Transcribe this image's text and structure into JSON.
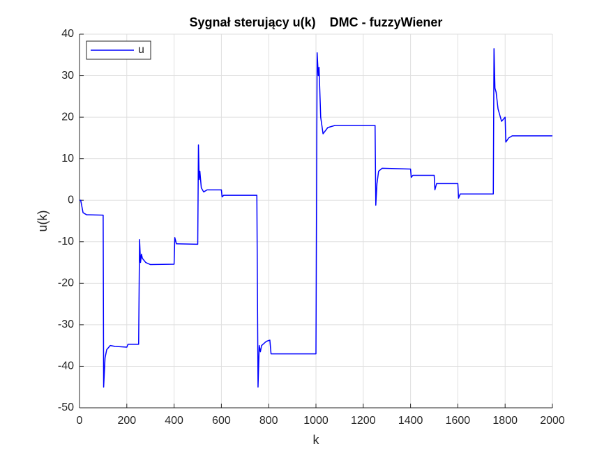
{
  "chart_data": {
    "type": "line",
    "title": "Sygnał sterujący u(k)    DMC - fuzzyWiener",
    "x_label": "k",
    "y_label": "u(k)",
    "x": [
      0,
      5,
      15,
      30,
      100,
      102,
      108,
      115,
      130,
      150,
      200,
      205,
      250,
      254,
      258,
      262,
      266,
      280,
      300,
      400,
      403,
      410,
      500,
      503,
      506,
      509,
      515,
      525,
      540,
      600,
      603,
      610,
      750,
      755,
      760,
      765,
      770,
      790,
      805,
      810,
      1000,
      1005,
      1010,
      1013,
      1020,
      1030,
      1050,
      1080,
      1250,
      1253,
      1258,
      1265,
      1280,
      1400,
      1403,
      1410,
      1500,
      1503,
      1510,
      1600,
      1603,
      1610,
      1750,
      1753,
      1757,
      1762,
      1770,
      1785,
      1800,
      1803,
      1815,
      1830,
      2000
    ],
    "series": [
      {
        "name": "u",
        "color": "#0000ff",
        "values": [
          0,
          0,
          -3,
          -3.5,
          -3.6,
          -45,
          -38,
          -36,
          -35,
          -35.2,
          -35.4,
          -34.7,
          -34.7,
          -9.5,
          -15,
          -13,
          -14,
          -15,
          -15.5,
          -15.4,
          -9,
          -10.5,
          -10.6,
          13.3,
          5,
          7,
          3,
          2,
          2.5,
          2.5,
          0.8,
          1.2,
          1.2,
          -45,
          -35,
          -36.5,
          -35,
          -34,
          -33.7,
          -37,
          -37,
          35.5,
          30,
          32,
          20,
          16,
          17.5,
          18,
          18,
          -1.2,
          4,
          7,
          7.7,
          7.5,
          5.5,
          6,
          6,
          2.5,
          4,
          4,
          0.5,
          1.5,
          1.5,
          36.5,
          27,
          26,
          22,
          19,
          20,
          14,
          15,
          15.5,
          15.5
        ]
      }
    ],
    "xlim": [
      0,
      2000
    ],
    "ylim": [
      -50,
      40
    ],
    "xticks": [
      0,
      200,
      400,
      600,
      800,
      1000,
      1200,
      1400,
      1600,
      1800,
      2000
    ],
    "yticks": [
      -50,
      -40,
      -30,
      -20,
      -10,
      0,
      10,
      20,
      30,
      40
    ],
    "grid": true,
    "legend_position": "upper-left"
  }
}
